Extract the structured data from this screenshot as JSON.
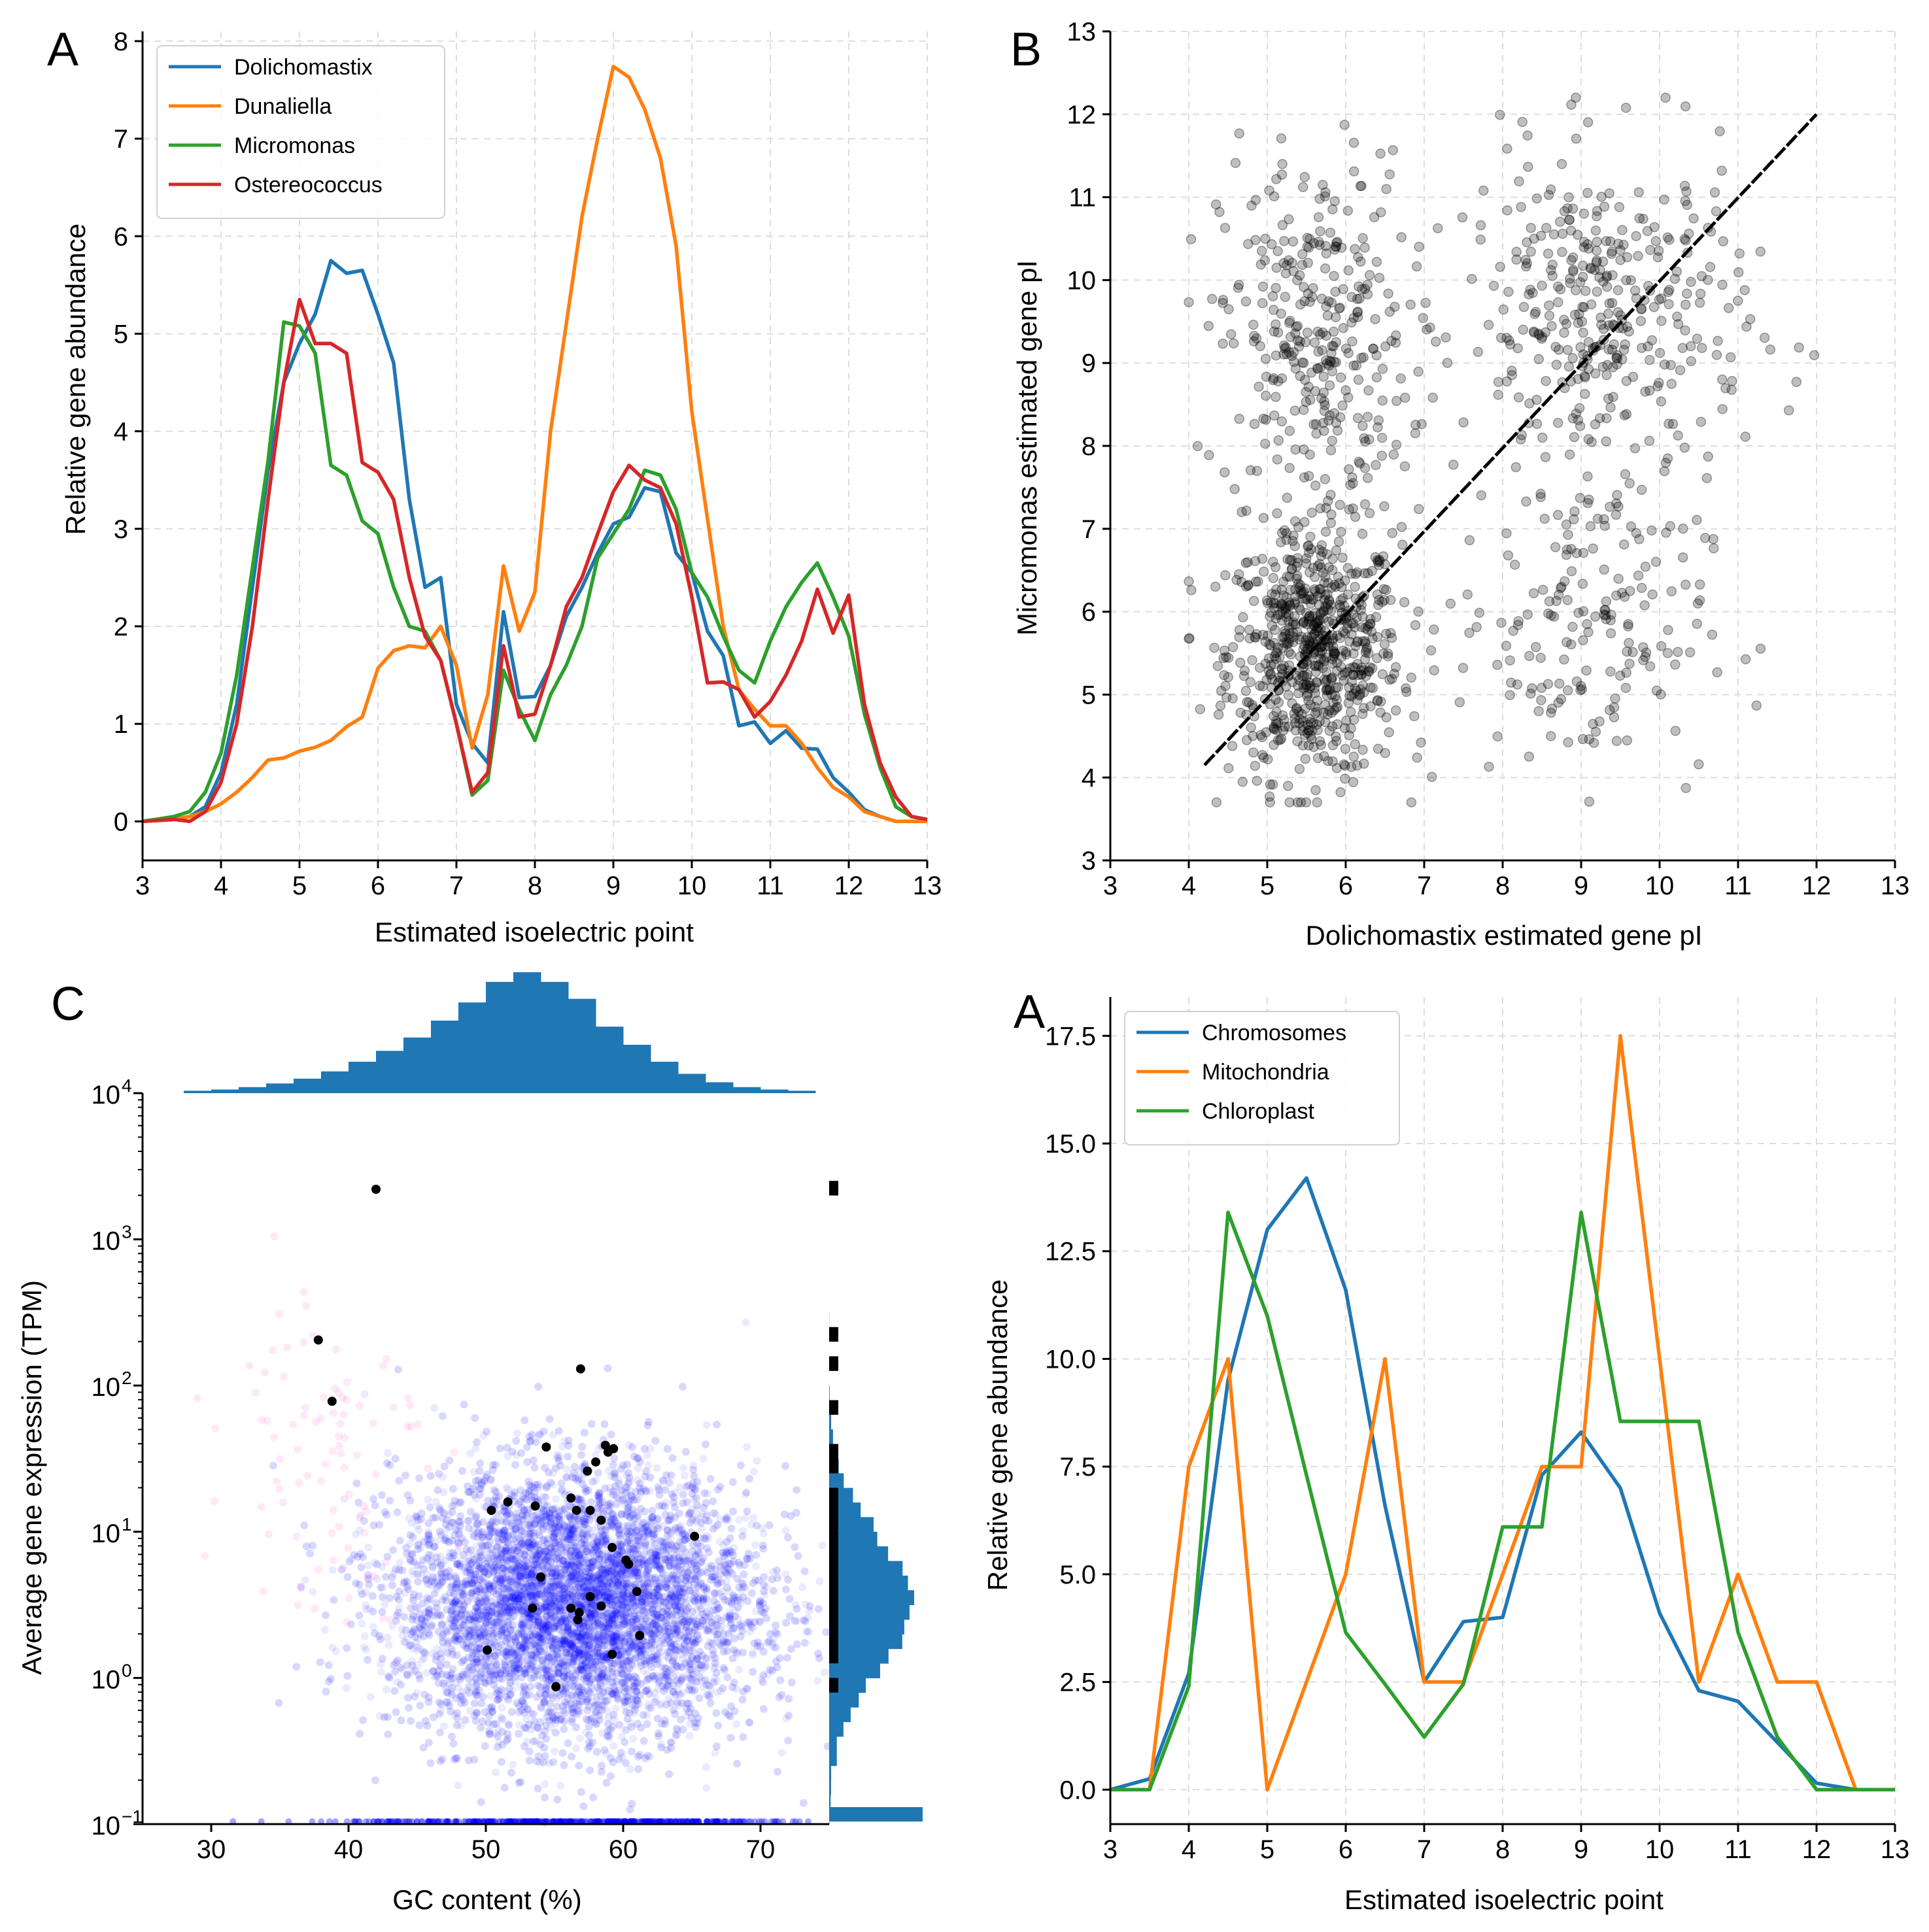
{
  "chart_data": [
    {
      "panel": "A",
      "type": "line",
      "xlabel": "Estimated isoelectric point",
      "ylabel": "Relative gene abundance",
      "xlim": [
        3,
        13
      ],
      "ylim": [
        -0.4,
        8.1
      ],
      "xticks": [
        "3",
        "4",
        "5",
        "6",
        "7",
        "8",
        "9",
        "10",
        "11",
        "12",
        "13"
      ],
      "yticks": [
        "0",
        "1",
        "2",
        "3",
        "4",
        "5",
        "6",
        "7",
        "8"
      ],
      "grid": true,
      "legend_position": "top-left",
      "series": [
        {
          "name": "Dolichomastix",
          "color": "#1f77b4",
          "x": [
            3.0,
            3.4,
            3.6,
            3.8,
            4.0,
            4.2,
            4.4,
            4.6,
            4.8,
            5.0,
            5.2,
            5.4,
            5.6,
            5.8,
            6.0,
            6.2,
            6.4,
            6.6,
            6.8,
            7.0,
            7.2,
            7.4,
            7.6,
            7.8,
            8.0,
            8.2,
            8.4,
            8.6,
            8.8,
            9.0,
            9.2,
            9.4,
            9.6,
            9.8,
            10.0,
            10.2,
            10.4,
            10.6,
            10.8,
            11.0,
            11.2,
            11.4,
            11.6,
            11.8,
            12.0,
            12.2,
            12.4,
            12.6,
            12.8,
            13.0
          ],
          "y": [
            0.0,
            0.02,
            0.05,
            0.15,
            0.5,
            1.2,
            2.4,
            3.6,
            4.5,
            4.9,
            5.2,
            5.75,
            5.62,
            5.65,
            5.2,
            4.7,
            3.3,
            2.4,
            2.5,
            1.2,
            0.8,
            0.6,
            2.15,
            1.27,
            1.28,
            1.6,
            2.1,
            2.4,
            2.75,
            3.05,
            3.12,
            3.42,
            3.38,
            2.75,
            2.55,
            1.95,
            1.7,
            0.98,
            1.02,
            0.8,
            0.93,
            0.75,
            0.74,
            0.45,
            0.3,
            0.12,
            0.05,
            0.0,
            0.0,
            0.0
          ]
        },
        {
          "name": "Dunaliella",
          "color": "#ff7f0e",
          "x": [
            3.0,
            3.4,
            3.6,
            3.8,
            4.0,
            4.2,
            4.4,
            4.6,
            4.8,
            5.0,
            5.2,
            5.4,
            5.6,
            5.8,
            6.0,
            6.2,
            6.4,
            6.6,
            6.8,
            7.0,
            7.2,
            7.4,
            7.6,
            7.8,
            8.0,
            8.2,
            8.4,
            8.6,
            8.8,
            9.0,
            9.2,
            9.4,
            9.6,
            9.8,
            10.0,
            10.2,
            10.4,
            10.6,
            10.8,
            11.0,
            11.2,
            11.4,
            11.6,
            11.8,
            12.0,
            12.2,
            12.4,
            12.6,
            12.8,
            13.0
          ],
          "y": [
            0.0,
            0.02,
            0.05,
            0.1,
            0.18,
            0.3,
            0.45,
            0.63,
            0.65,
            0.72,
            0.76,
            0.83,
            0.97,
            1.07,
            1.57,
            1.75,
            1.8,
            1.78,
            2.0,
            1.6,
            0.75,
            1.3,
            2.62,
            1.95,
            2.35,
            4.0,
            5.1,
            6.2,
            7.0,
            7.74,
            7.63,
            7.3,
            6.8,
            5.9,
            4.2,
            3.1,
            2.0,
            1.35,
            1.15,
            0.98,
            0.98,
            0.8,
            0.55,
            0.35,
            0.25,
            0.1,
            0.05,
            0.0,
            0.0,
            0.0
          ]
        },
        {
          "name": "Micromonas",
          "color": "#2ca02c",
          "x": [
            3.0,
            3.4,
            3.6,
            3.8,
            4.0,
            4.2,
            4.4,
            4.6,
            4.8,
            5.0,
            5.2,
            5.4,
            5.6,
            5.8,
            6.0,
            6.2,
            6.4,
            6.6,
            6.8,
            7.0,
            7.2,
            7.4,
            7.6,
            7.8,
            8.0,
            8.2,
            8.4,
            8.6,
            8.8,
            9.0,
            9.2,
            9.4,
            9.6,
            9.8,
            10.0,
            10.2,
            10.4,
            10.6,
            10.8,
            11.0,
            11.2,
            11.4,
            11.6,
            11.8,
            12.0,
            12.2,
            12.4,
            12.6,
            12.8,
            13.0
          ],
          "y": [
            0.0,
            0.05,
            0.1,
            0.3,
            0.7,
            1.5,
            2.6,
            3.7,
            5.12,
            5.08,
            4.8,
            3.65,
            3.55,
            3.08,
            2.95,
            2.4,
            2.0,
            1.95,
            1.65,
            1.0,
            0.27,
            0.42,
            1.55,
            1.15,
            0.83,
            1.3,
            1.6,
            2.0,
            2.7,
            2.95,
            3.2,
            3.6,
            3.55,
            3.2,
            2.55,
            2.3,
            1.9,
            1.55,
            1.42,
            1.85,
            2.2,
            2.45,
            2.65,
            2.3,
            1.9,
            1.1,
            0.55,
            0.15,
            0.05,
            0.02
          ]
        },
        {
          "name": "Ostereococcus",
          "color": "#d62728",
          "x": [
            3.0,
            3.4,
            3.6,
            3.8,
            4.0,
            4.2,
            4.4,
            4.6,
            4.8,
            5.0,
            5.2,
            5.4,
            5.6,
            5.8,
            6.0,
            6.2,
            6.4,
            6.6,
            6.8,
            7.0,
            7.2,
            7.4,
            7.6,
            7.8,
            8.0,
            8.2,
            8.4,
            8.6,
            8.8,
            9.0,
            9.2,
            9.4,
            9.6,
            9.8,
            10.0,
            10.2,
            10.4,
            10.6,
            10.8,
            11.0,
            11.2,
            11.4,
            11.6,
            11.8,
            12.0,
            12.2,
            12.4,
            12.6,
            12.8,
            13.0
          ],
          "y": [
            0.0,
            0.02,
            0.0,
            0.1,
            0.4,
            1.0,
            2.0,
            3.3,
            4.5,
            5.35,
            4.9,
            4.9,
            4.8,
            3.68,
            3.58,
            3.3,
            2.5,
            1.9,
            1.65,
            1.0,
            0.3,
            0.5,
            1.8,
            1.07,
            1.1,
            1.6,
            2.2,
            2.5,
            2.95,
            3.38,
            3.65,
            3.5,
            3.42,
            3.05,
            2.3,
            1.42,
            1.43,
            1.35,
            1.07,
            1.23,
            1.5,
            1.85,
            2.38,
            1.93,
            2.32,
            1.2,
            0.6,
            0.25,
            0.05,
            0.02
          ]
        }
      ]
    },
    {
      "panel": "B",
      "type": "scatter",
      "xlabel": "Dolichomastix estimated gene pI",
      "ylabel": "Micromonas estimated gene pI",
      "xlim": [
        3,
        13
      ],
      "ylim": [
        3,
        13
      ],
      "xticks": [
        "3",
        "4",
        "5",
        "6",
        "7",
        "8",
        "9",
        "10",
        "11",
        "12",
        "13"
      ],
      "yticks": [
        "3",
        "4",
        "5",
        "6",
        "7",
        "8",
        "9",
        "10",
        "11",
        "12",
        "13"
      ],
      "grid": true,
      "point_color": "#000000",
      "point_alpha": 0.25,
      "clusters": [
        {
          "center": [
            5.6,
            5.5
          ],
          "spread": [
            0.55,
            0.75
          ],
          "count": 700
        },
        {
          "center": [
            5.6,
            9.3
          ],
          "spread": [
            0.6,
            1.1
          ],
          "count": 330
        },
        {
          "center": [
            9.3,
            9.5
          ],
          "spread": [
            0.9,
            1.0
          ],
          "count": 380
        },
        {
          "center": [
            9.0,
            5.8
          ],
          "spread": [
            0.8,
            0.9
          ],
          "count": 180
        }
      ],
      "fit_line": {
        "x": [
          4.2,
          12.0
        ],
        "y": [
          4.15,
          12.0
        ],
        "color": "#000000",
        "style": "dashed"
      }
    },
    {
      "panel": "C",
      "type": "scatter",
      "xlabel": "GC content (%)",
      "ylabel": "Average gene expression (TPM)",
      "xlim": [
        25,
        75
      ],
      "ylim_log10": [
        -1,
        4
      ],
      "yscale": "log",
      "xticks": [
        "30",
        "40",
        "50",
        "60",
        "70"
      ],
      "ytick_exponents": [
        "4",
        "3",
        "2",
        "1",
        "0",
        "−1"
      ],
      "grid": false,
      "bulk_points": {
        "color": "#0000ff",
        "alpha": 0.08,
        "center": [
          56.5,
          3.2
        ],
        "spread_gc": 6.5,
        "spread_log10": 0.45,
        "count": 9000
      },
      "pink_points": {
        "color": "#ff66cc",
        "alpha": 0.15,
        "center": [
          38.5,
          40.0
        ],
        "spread_gc": 3.5,
        "spread_log10": 0.6,
        "count": 90
      },
      "highlighted_points": [
        {
          "gc": 42.0,
          "tpm": 2200
        },
        {
          "gc": 37.8,
          "tpm": 205
        },
        {
          "gc": 38.8,
          "tpm": 78
        },
        {
          "gc": 56.9,
          "tpm": 130
        },
        {
          "gc": 54.4,
          "tpm": 38
        },
        {
          "gc": 58.7,
          "tpm": 39
        },
        {
          "gc": 59.3,
          "tpm": 37
        },
        {
          "gc": 58.9,
          "tpm": 35
        },
        {
          "gc": 58.0,
          "tpm": 30
        },
        {
          "gc": 57.4,
          "tpm": 26
        },
        {
          "gc": 56.2,
          "tpm": 17
        },
        {
          "gc": 51.6,
          "tpm": 16
        },
        {
          "gc": 53.6,
          "tpm": 15
        },
        {
          "gc": 56.6,
          "tpm": 14
        },
        {
          "gc": 50.4,
          "tpm": 14
        },
        {
          "gc": 57.6,
          "tpm": 14
        },
        {
          "gc": 58.4,
          "tpm": 12
        },
        {
          "gc": 65.2,
          "tpm": 9.3
        },
        {
          "gc": 59.2,
          "tpm": 7.8
        },
        {
          "gc": 60.2,
          "tpm": 6.4
        },
        {
          "gc": 60.4,
          "tpm": 6.0
        },
        {
          "gc": 54.0,
          "tpm": 4.9
        },
        {
          "gc": 61.0,
          "tpm": 3.9
        },
        {
          "gc": 57.6,
          "tpm": 3.6
        },
        {
          "gc": 58.4,
          "tpm": 3.1
        },
        {
          "gc": 53.4,
          "tpm": 3.0
        },
        {
          "gc": 56.2,
          "tpm": 3.0
        },
        {
          "gc": 56.8,
          "tpm": 2.8
        },
        {
          "gc": 56.7,
          "tpm": 2.5
        },
        {
          "gc": 61.2,
          "tpm": 1.95
        },
        {
          "gc": 50.1,
          "tpm": 1.55
        },
        {
          "gc": 59.2,
          "tpm": 1.45
        },
        {
          "gc": 55.1,
          "tpm": 0.87
        }
      ],
      "top_histogram": {
        "color": "#1f77b4",
        "bin_start": 28,
        "bin_width": 2,
        "counts": [
          2,
          3,
          5,
          8,
          12,
          18,
          26,
          35,
          46,
          60,
          75,
          92,
          100,
          92,
          78,
          55,
          40,
          26,
          16,
          9,
          5,
          3,
          2
        ]
      },
      "right_histogram": {
        "color": "#1f77b4",
        "highlight_color": "#000000"
      }
    },
    {
      "panel": "A",
      "type": "line",
      "xlabel": "Estimated isoelectric point",
      "ylabel": "Relative gene abundance",
      "xlim": [
        3,
        13
      ],
      "ylim": [
        -0.8,
        18.4
      ],
      "xticks": [
        "3",
        "4",
        "5",
        "6",
        "7",
        "8",
        "9",
        "10",
        "11",
        "12",
        "13"
      ],
      "yticks": [
        "0.0",
        "2.5",
        "5.0",
        "7.5",
        "10.0",
        "12.5",
        "15.0",
        "17.5"
      ],
      "grid": true,
      "legend_position": "top-left",
      "series": [
        {
          "name": "Chromosomes",
          "color": "#1f77b4",
          "x": [
            3.0,
            3.5,
            4.0,
            4.5,
            5.0,
            5.5,
            6.0,
            6.5,
            7.0,
            7.5,
            8.0,
            8.5,
            9.0,
            9.5,
            10.0,
            10.5,
            11.0,
            11.5,
            12.0,
            12.5,
            13.0
          ],
          "y": [
            0.0,
            0.25,
            2.7,
            9.5,
            13.0,
            14.2,
            11.6,
            6.6,
            2.5,
            3.9,
            4.0,
            7.3,
            8.3,
            7.0,
            4.1,
            2.3,
            2.05,
            1.1,
            0.15,
            0.0,
            0.0
          ]
        },
        {
          "name": "Mitochondria",
          "color": "#ff7f0e",
          "x": [
            3.0,
            3.5,
            4.0,
            4.5,
            5.0,
            5.5,
            6.0,
            6.5,
            7.0,
            7.5,
            8.0,
            8.5,
            9.0,
            9.5,
            10.0,
            10.5,
            11.0,
            11.5,
            12.0,
            12.5,
            13.0
          ],
          "y": [
            0.0,
            0.0,
            7.5,
            10.0,
            0.0,
            2.5,
            5.0,
            10.0,
            2.5,
            2.5,
            5.0,
            7.5,
            7.5,
            17.5,
            10.0,
            2.5,
            5.0,
            2.5,
            2.5,
            0.0,
            0.0
          ]
        },
        {
          "name": "Chloroplast",
          "color": "#2ca02c",
          "x": [
            3.0,
            3.5,
            4.0,
            4.5,
            5.0,
            5.5,
            6.0,
            6.5,
            7.0,
            7.5,
            8.0,
            8.5,
            9.0,
            9.5,
            10.0,
            10.5,
            11.0,
            11.5,
            12.0,
            12.5,
            13.0
          ],
          "y": [
            0.0,
            0.0,
            2.4,
            13.4,
            11.0,
            7.3,
            3.65,
            2.45,
            1.22,
            2.45,
            6.1,
            6.1,
            13.4,
            8.55,
            8.55,
            8.55,
            3.65,
            1.22,
            0.0,
            0.0,
            0.0
          ]
        }
      ]
    }
  ],
  "panel_letters": [
    "A",
    "B",
    "C",
    "A"
  ]
}
